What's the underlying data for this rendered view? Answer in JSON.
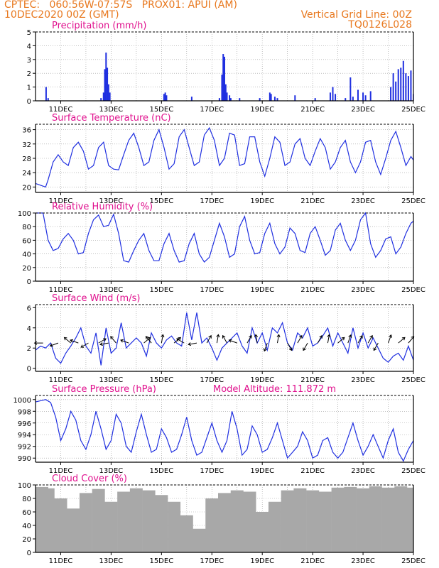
{
  "header": {
    "line1_left": "CPTEC:   060:56W-07:57S   PROX01: APUI (AM)",
    "line2_left": "10DEC2020 00Z (GMT)",
    "line1_right": "Vertical Grid Line: 00Z",
    "line2_right": "TQ0126L028"
  },
  "colors": {
    "header": "#e8781e",
    "title": "#e0118e",
    "line": "#1f2fe0",
    "bar": "#1f2fe0",
    "cloud": "#a8a8a8",
    "grid": "#9a9a9a"
  },
  "chart_data": [
    {
      "type": "bar",
      "title": "Precipitation (mm/h)",
      "ylim": [
        0,
        5
      ],
      "yticks": [
        0,
        1,
        2,
        3,
        4,
        5
      ],
      "xlim": [
        10,
        25
      ],
      "xticks": [
        "11DEC",
        "13DEC",
        "15DEC",
        "17DEC",
        "19DEC",
        "21DEC",
        "23DEC",
        "25DEC"
      ],
      "x": [
        10.42,
        10.5,
        12.6,
        12.7,
        12.75,
        12.8,
        12.85,
        12.9,
        12.95,
        15.1,
        15.15,
        15.2,
        16.2,
        17.3,
        17.4,
        17.45,
        17.5,
        17.55,
        17.6,
        17.7,
        17.75,
        18.1,
        18.9,
        19.3,
        19.35,
        19.5,
        19.6,
        20.3,
        21.1,
        21.7,
        21.8,
        21.9,
        22.3,
        22.5,
        22.6,
        22.8,
        23.0,
        23.1,
        23.3,
        24.1,
        24.2,
        24.3,
        24.4,
        24.5,
        24.6,
        24.7,
        24.8,
        24.9,
        25.0
      ],
      "values": [
        1.0,
        0.2,
        0.2,
        0.6,
        2.3,
        3.5,
        2.4,
        1.2,
        0.6,
        0.5,
        0.6,
        0.4,
        0.3,
        0.2,
        1.9,
        3.4,
        3.2,
        1.2,
        0.6,
        0.4,
        0.2,
        0.2,
        0.2,
        0.6,
        0.5,
        0.3,
        0.2,
        0.4,
        0.2,
        0.6,
        1.0,
        0.5,
        0.2,
        1.7,
        0.3,
        0.8,
        0.6,
        0.4,
        0.7,
        1.0,
        2.0,
        1.4,
        2.3,
        2.4,
        2.9,
        2.0,
        1.8,
        2.2,
        0.5
      ]
    },
    {
      "type": "line",
      "title": "Surface Temperature (nC)",
      "ylim": [
        18.5,
        37.5
      ],
      "yticks": [
        20,
        24,
        28,
        32,
        36
      ],
      "xlim": [
        10,
        25
      ],
      "xticks": [
        "11DEC",
        "13DEC",
        "15DEC",
        "17DEC",
        "19DEC",
        "21DEC",
        "23DEC",
        "25DEC"
      ],
      "series": [
        {
          "x": [
            10.0,
            10.2,
            10.4,
            10.5,
            10.7,
            10.9,
            11.1,
            11.3,
            11.5,
            11.7,
            11.9,
            12.1,
            12.3,
            12.5,
            12.7,
            12.9,
            13.1,
            13.3,
            13.5,
            13.7,
            13.9,
            14.1,
            14.3,
            14.5,
            14.7,
            14.9,
            15.1,
            15.3,
            15.5,
            15.7,
            15.9,
            16.1,
            16.3,
            16.5,
            16.7,
            16.9,
            17.1,
            17.3,
            17.5,
            17.7,
            17.9,
            18.1,
            18.3,
            18.5,
            18.7,
            18.9,
            19.1,
            19.3,
            19.5,
            19.7,
            19.9,
            20.1,
            20.3,
            20.5,
            20.7,
            20.9,
            21.1,
            21.3,
            21.5,
            21.7,
            21.9,
            22.1,
            22.3,
            22.5,
            22.7,
            22.9,
            23.1,
            23.3,
            23.5,
            23.7,
            23.9,
            24.1,
            24.3,
            24.5,
            24.7,
            24.9,
            25.0
          ],
          "values": [
            21,
            20.5,
            20,
            22,
            27,
            29,
            27,
            26,
            31,
            32.5,
            30,
            25,
            26,
            31,
            32.5,
            26,
            25,
            24.8,
            29,
            33,
            35,
            31,
            26,
            27,
            33,
            36,
            31,
            25,
            26.5,
            34,
            36,
            31,
            26,
            27,
            34.5,
            36.5,
            33,
            26,
            28,
            35,
            34.5,
            26,
            26.5,
            34,
            34,
            27,
            23,
            28,
            34,
            32.5,
            26,
            27,
            32,
            33.5,
            28,
            26,
            30,
            33.5,
            31,
            25,
            27,
            31,
            33,
            27,
            24,
            27,
            32.5,
            33,
            27,
            23.5,
            28,
            33,
            35.5,
            31,
            26,
            28.5,
            27.5
          ]
        }
      ]
    },
    {
      "type": "line",
      "title": "Relative Humidity (%)",
      "ylim": [
        0,
        100
      ],
      "yticks": [
        0,
        20,
        40,
        60,
        80,
        100
      ],
      "xlim": [
        10,
        25
      ],
      "xticks": [
        "11DEC",
        "13DEC",
        "15DEC",
        "17DEC",
        "19DEC",
        "21DEC",
        "23DEC",
        "25DEC"
      ],
      "series": [
        {
          "x": [
            10.0,
            10.3,
            10.5,
            10.7,
            10.9,
            11.1,
            11.3,
            11.5,
            11.7,
            11.9,
            12.1,
            12.3,
            12.5,
            12.7,
            12.9,
            13.1,
            13.3,
            13.5,
            13.7,
            13.9,
            14.1,
            14.3,
            14.5,
            14.7,
            14.9,
            15.1,
            15.3,
            15.5,
            15.7,
            15.9,
            16.1,
            16.3,
            16.5,
            16.7,
            16.9,
            17.1,
            17.3,
            17.5,
            17.7,
            17.9,
            18.1,
            18.3,
            18.5,
            18.7,
            18.9,
            19.1,
            19.3,
            19.5,
            19.7,
            19.9,
            20.1,
            20.3,
            20.5,
            20.7,
            20.9,
            21.1,
            21.3,
            21.5,
            21.7,
            21.9,
            22.1,
            22.3,
            22.5,
            22.7,
            22.9,
            23.1,
            23.3,
            23.5,
            23.7,
            23.9,
            24.1,
            24.3,
            24.5,
            24.7,
            24.9,
            25.0
          ],
          "values": [
            100,
            100,
            60,
            45,
            48,
            62,
            70,
            60,
            40,
            42,
            70,
            90,
            97,
            80,
            82,
            98,
            70,
            30,
            28,
            45,
            60,
            70,
            45,
            30,
            30,
            55,
            70,
            45,
            28,
            30,
            55,
            70,
            40,
            28,
            35,
            60,
            85,
            65,
            35,
            40,
            80,
            95,
            60,
            40,
            42,
            70,
            85,
            55,
            40,
            50,
            78,
            70,
            45,
            42,
            70,
            80,
            60,
            38,
            45,
            75,
            85,
            60,
            45,
            60,
            90,
            100,
            55,
            35,
            45,
            62,
            65,
            40,
            50,
            70,
            85,
            88
          ]
        }
      ]
    },
    {
      "type": "line",
      "title": "Surface Wind (m/s)",
      "ylim": [
        -0.3,
        6.3
      ],
      "yticks": [
        0,
        2,
        4,
        6
      ],
      "xlim": [
        10,
        25
      ],
      "xticks": [
        "11DEC",
        "13DEC",
        "15DEC",
        "17DEC",
        "19DEC",
        "21DEC",
        "23DEC",
        "25DEC"
      ],
      "series": [
        {
          "x": [
            10.0,
            10.2,
            10.4,
            10.6,
            10.8,
            11.0,
            11.2,
            11.4,
            11.6,
            11.8,
            12.0,
            12.2,
            12.4,
            12.6,
            12.8,
            13.0,
            13.2,
            13.4,
            13.6,
            13.8,
            14.0,
            14.2,
            14.4,
            14.6,
            14.8,
            15.0,
            15.2,
            15.4,
            15.6,
            15.8,
            16.0,
            16.2,
            16.4,
            16.6,
            16.8,
            17.0,
            17.2,
            17.4,
            17.6,
            17.8,
            18.0,
            18.2,
            18.4,
            18.6,
            18.8,
            19.0,
            19.2,
            19.4,
            19.6,
            19.8,
            20.0,
            20.2,
            20.4,
            20.6,
            20.8,
            21.0,
            21.2,
            21.4,
            21.6,
            21.8,
            22.0,
            22.2,
            22.4,
            22.6,
            22.8,
            23.0,
            23.2,
            23.4,
            23.6,
            23.8,
            24.0,
            24.2,
            24.4,
            24.6,
            24.8,
            25.0
          ],
          "values": [
            1.8,
            2.2,
            2.0,
            2.5,
            1.0,
            0.5,
            1.5,
            2.2,
            3.0,
            4.0,
            2.2,
            1.5,
            3.5,
            0.3,
            4.0,
            1.5,
            2.0,
            4.5,
            2.0,
            2.5,
            3.0,
            2.5,
            1.2,
            3.5,
            2.5,
            2.0,
            2.8,
            3.2,
            2.5,
            2.2,
            5.5,
            2.8,
            5.5,
            2.5,
            3.0,
            2.0,
            0.8,
            2.0,
            2.5,
            3.0,
            3.5,
            2.2,
            1.5,
            4.0,
            2.5,
            3.5,
            1.8,
            4.0,
            3.5,
            4.5,
            2.5,
            1.8,
            3.5,
            3.0,
            4.0,
            2.2,
            2.5,
            3.2,
            4.0,
            2.2,
            3.5,
            2.5,
            1.5,
            4.0,
            2.0,
            3.5,
            2.0,
            3.0,
            2.0,
            1.0,
            0.6,
            1.2,
            1.5,
            0.8,
            2.2,
            0.8
          ]
        }
      ],
      "wind_arrows": {
        "x": [
          10.3,
          10.9,
          11.4,
          11.7,
          12.1,
          12.5,
          12.9,
          13.2,
          13.7,
          14.3,
          14.6,
          15.0,
          15.5,
          15.9,
          16.4,
          16.8,
          17.2,
          17.6,
          18.0,
          18.4,
          18.8,
          19.2,
          19.6,
          20.0,
          20.4,
          20.8,
          21.2,
          21.6,
          22.0,
          22.4,
          22.8,
          23.2,
          23.6,
          24.0,
          24.4,
          24.8
        ],
        "dir_deg": [
          180,
          160,
          220,
          200,
          150,
          330,
          170,
          230,
          200,
          320,
          230,
          280,
          320,
          210,
          170,
          300,
          280,
          240,
          200,
          300,
          260,
          110,
          280,
          60,
          300,
          120,
          300,
          280,
          320,
          290,
          300,
          300,
          120,
          290,
          320,
          310
        ]
      }
    },
    {
      "type": "line",
      "title": "Surface Pressure (hPa)",
      "annotation": "Model Altitude: 111.872 m",
      "ylim": [
        989.3,
        1000.7
      ],
      "yticks": [
        990,
        992,
        994,
        996,
        998,
        1000
      ],
      "xlim": [
        10,
        25
      ],
      "xticks": [
        "11DEC",
        "13DEC",
        "15DEC",
        "17DEC",
        "19DEC",
        "21DEC",
        "23DEC",
        "25DEC"
      ],
      "series": [
        {
          "x": [
            10.0,
            10.2,
            10.4,
            10.6,
            10.8,
            11.0,
            11.2,
            11.4,
            11.6,
            11.8,
            12.0,
            12.2,
            12.4,
            12.6,
            12.8,
            13.0,
            13.2,
            13.4,
            13.6,
            13.8,
            14.0,
            14.2,
            14.4,
            14.6,
            14.8,
            15.0,
            15.2,
            15.4,
            15.6,
            15.8,
            16.0,
            16.2,
            16.4,
            16.6,
            16.8,
            17.0,
            17.2,
            17.4,
            17.6,
            17.8,
            18.0,
            18.2,
            18.4,
            18.6,
            18.8,
            19.0,
            19.2,
            19.4,
            19.6,
            19.8,
            20.0,
            20.2,
            20.4,
            20.6,
            20.8,
            21.0,
            21.2,
            21.4,
            21.6,
            21.8,
            22.0,
            22.2,
            22.4,
            22.6,
            22.8,
            23.0,
            23.2,
            23.4,
            23.6,
            23.8,
            24.0,
            24.2,
            24.4,
            24.6,
            24.8,
            25.0
          ],
          "values": [
            999.6,
            999.8,
            1000,
            999.5,
            997,
            993,
            995,
            998,
            996.5,
            993,
            991.5,
            994,
            998,
            995,
            991.5,
            993,
            997.5,
            996,
            992,
            991,
            994.5,
            997.5,
            994,
            991,
            991.5,
            995,
            993.5,
            991,
            991.5,
            994,
            997,
            993,
            990.5,
            991,
            993.5,
            996,
            993,
            991,
            993,
            998,
            995,
            990.5,
            991.5,
            995.5,
            994,
            991,
            991.5,
            993.5,
            996,
            993,
            990,
            991,
            992,
            994.5,
            993,
            990,
            990.5,
            993,
            993.5,
            991,
            990,
            991,
            993.5,
            996,
            993,
            990.5,
            992,
            994,
            992,
            990,
            993,
            995,
            991,
            989.5,
            991.5,
            993
          ]
        }
      ]
    },
    {
      "type": "bar",
      "title": "Cloud Cover (%)",
      "ylim": [
        0,
        100
      ],
      "yticks": [
        0,
        20,
        40,
        60,
        80,
        100
      ],
      "xlim": [
        10,
        25
      ],
      "xticks": [
        "11DEC",
        "13DEC",
        "15DEC",
        "17DEC",
        "19DEC",
        "21DEC",
        "23DEC",
        "25DEC"
      ],
      "x": [
        10.0,
        10.5,
        11.0,
        11.5,
        12.0,
        12.5,
        13.0,
        13.5,
        14.0,
        14.5,
        15.0,
        15.5,
        16.0,
        16.5,
        17.0,
        17.5,
        18.0,
        18.5,
        19.0,
        19.5,
        20.0,
        20.5,
        21.0,
        21.5,
        22.0,
        22.5,
        23.0,
        23.5,
        24.0,
        24.5,
        25.0
      ],
      "values": [
        97,
        95,
        80,
        65,
        88,
        94,
        75,
        90,
        95,
        92,
        85,
        75,
        55,
        35,
        80,
        88,
        92,
        90,
        60,
        75,
        92,
        95,
        92,
        90,
        96,
        97,
        95,
        98,
        96,
        98,
        96
      ]
    }
  ]
}
